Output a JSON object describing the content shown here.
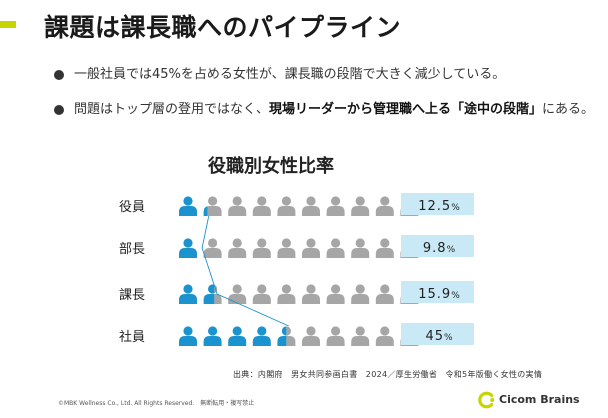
{
  "slide": {
    "title": "課題は課長職へのパイプライン",
    "bullets": [
      {
        "text": "一般社員では45%を占める女性が、課長職の段階で大きく減少している。"
      },
      {
        "pre": "問題はトップ層の登用ではなく、",
        "bold": "現場リーダーから管理職へ上る「途中の段階」",
        "post": "にある。"
      }
    ],
    "source": "出典：内閣府　男女共同参画白書　2024／厚生労働省　令和5年版働く女性の実情",
    "copyright": "©MBK Wellness Co., Ltd. All Rights Reserved.　無断転用・複写禁止",
    "logo_text": "Cicom Brains"
  },
  "colors": {
    "accent": "#c8d400",
    "female": "#1a93cf",
    "male": "#a6a6a6",
    "label_box": "#c9e9f6",
    "connector": "#1a93cf"
  },
  "chart_data": {
    "type": "pictograph",
    "title": "役職別女性比率",
    "unit": "%",
    "icons_per_row": 10,
    "categories": [
      "役員",
      "部長",
      "課長",
      "社員"
    ],
    "series": [
      {
        "name": "女性",
        "values": [
          12.5,
          9.8,
          15.9,
          45
        ]
      }
    ],
    "value_labels": [
      {
        "num": "12.5",
        "unit": "%"
      },
      {
        "num": "9.8",
        "unit": "%"
      },
      {
        "num": "15.9",
        "unit": "%"
      },
      {
        "num": "45",
        "unit": "%"
      }
    ]
  }
}
